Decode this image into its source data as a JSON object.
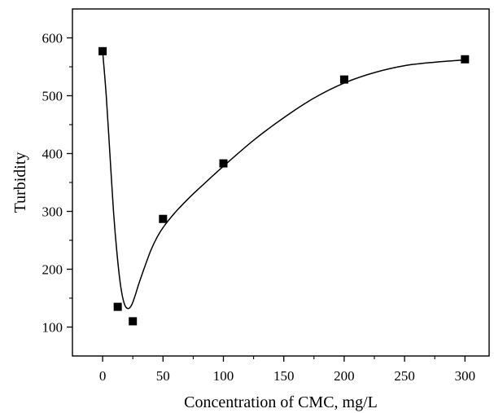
{
  "chart_data": {
    "type": "scatter",
    "title": "",
    "xlabel": "Concentration of CMC, mg/L",
    "ylabel": "Turbidity",
    "xlim": [
      -25,
      320
    ],
    "ylim": [
      50,
      650
    ],
    "xticks": [
      0,
      50,
      100,
      150,
      200,
      250,
      300
    ],
    "yticks": [
      100,
      200,
      300,
      400,
      500,
      600
    ],
    "grid": false,
    "legend": "none",
    "series": [
      {
        "x": [
          0,
          12.5,
          25,
          50,
          100,
          200,
          300
        ],
        "y": [
          577,
          135,
          110,
          287,
          383,
          528,
          563
        ],
        "marker": "square",
        "color": "#000000"
      }
    ],
    "fit_curve": {
      "x": [
        0,
        3,
        6,
        9,
        12,
        15,
        18,
        21,
        24,
        27,
        30,
        35,
        40,
        45,
        50,
        60,
        70,
        80,
        100,
        125,
        150,
        175,
        200,
        225,
        250,
        275,
        300
      ],
      "y": [
        577,
        500,
        400,
        300,
        225,
        170,
        140,
        132,
        138,
        155,
        175,
        205,
        233,
        255,
        272,
        298,
        320,
        340,
        378,
        423,
        462,
        496,
        522,
        540,
        552,
        558,
        562
      ],
      "color": "#000000"
    }
  }
}
